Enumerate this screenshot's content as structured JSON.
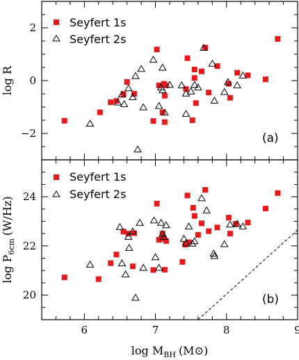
{
  "chart_data": [
    {
      "type": "scatter",
      "panel_label": "(a)",
      "ylabel_main": "log R",
      "xlim": [
        5.4,
        9.0
      ],
      "ylim": [
        -3.0,
        3.0
      ],
      "xticks": [
        6,
        7,
        8,
        9
      ],
      "yticks": [
        -2,
        0,
        2
      ],
      "ytick_labels": [
        "−2",
        "0",
        "2"
      ],
      "series": [
        {
          "name": "Seyfert 1s",
          "marker": "square",
          "color": "#e41a1c",
          "points": [
            [
              5.72,
              -1.52
            ],
            [
              6.22,
              -1.2
            ],
            [
              6.37,
              -0.82
            ],
            [
              6.45,
              -0.77
            ],
            [
              6.55,
              -0.51
            ],
            [
              6.6,
              -0.05
            ],
            [
              6.7,
              -0.5
            ],
            [
              6.97,
              -1.53
            ],
            [
              7.02,
              1.18
            ],
            [
              7.05,
              -0.18
            ],
            [
              7.1,
              -1.2
            ],
            [
              7.12,
              -0.12
            ],
            [
              7.13,
              -0.57
            ],
            [
              7.13,
              -1.57
            ],
            [
              7.15,
              -0.18
            ],
            [
              7.43,
              -0.32
            ],
            [
              7.45,
              0.85
            ],
            [
              7.52,
              -1.5
            ],
            [
              7.55,
              0.1
            ],
            [
              7.55,
              0.42
            ],
            [
              7.57,
              -0.85
            ],
            [
              7.65,
              0.35
            ],
            [
              7.7,
              1.25
            ],
            [
              7.75,
              -0.45
            ],
            [
              7.87,
              0.55
            ],
            [
              8.03,
              -0.12
            ],
            [
              8.05,
              -0.65
            ],
            [
              8.15,
              0.3
            ],
            [
              8.3,
              0.2
            ],
            [
              8.55,
              0.05
            ],
            [
              8.72,
              1.58
            ]
          ]
        },
        {
          "name": "Seyfert 2s",
          "marker": "triangle",
          "color": "#000000",
          "points": [
            [
              6.08,
              -1.62
            ],
            [
              6.47,
              -0.82
            ],
            [
              6.53,
              -0.52
            ],
            [
              6.56,
              -0.88
            ],
            [
              6.62,
              -0.28
            ],
            [
              6.68,
              -0.62
            ],
            [
              6.72,
              0.18
            ],
            [
              6.75,
              -2.6
            ],
            [
              6.8,
              0.45
            ],
            [
              6.83,
              -1.0
            ],
            [
              6.97,
              0.8
            ],
            [
              7.05,
              -0.95
            ],
            [
              7.08,
              -0.25
            ],
            [
              7.1,
              0.5
            ],
            [
              7.1,
              -0.35
            ],
            [
              7.13,
              -1.2
            ],
            [
              7.2,
              -0.15
            ],
            [
              7.37,
              -0.17
            ],
            [
              7.43,
              -0.48
            ],
            [
              7.43,
              -1.25
            ],
            [
              7.5,
              -0.4
            ],
            [
              7.55,
              -0.15
            ],
            [
              7.6,
              -0.25
            ],
            [
              7.68,
              1.25
            ],
            [
              7.8,
              0.65
            ],
            [
              7.83,
              -0.75
            ],
            [
              7.97,
              -0.42
            ],
            [
              8.02,
              -0.05
            ],
            [
              8.15,
              -0.17
            ],
            [
              8.23,
              0.2
            ]
          ]
        }
      ]
    },
    {
      "type": "scatter",
      "panel_label": "(b)",
      "ylabel_main": "log P",
      "ylabel_sub": "6cm",
      "ylabel_unit": "(W/Hz)",
      "xlabel_main": "log M",
      "xlabel_sub": "BH",
      "xlabel_unit": "(M⊙)",
      "xlim": [
        5.4,
        9.0
      ],
      "ylim": [
        19.0,
        25.5
      ],
      "xticks": [
        6,
        7,
        8,
        9
      ],
      "yticks": [
        20,
        22,
        24
      ],
      "reference_line": [
        [
          7.6,
          19.0
        ],
        [
          9.0,
          22.65
        ]
      ],
      "series": [
        {
          "name": "Seyfert 1s",
          "marker": "square",
          "color": "#e41a1c",
          "points": [
            [
              5.72,
              20.72
            ],
            [
              6.2,
              20.65
            ],
            [
              6.37,
              21.3
            ],
            [
              6.45,
              21.65
            ],
            [
              6.55,
              22.58
            ],
            [
              6.62,
              22.5
            ],
            [
              6.68,
              21.17
            ],
            [
              6.7,
              22.52
            ],
            [
              6.97,
              21.02
            ],
            [
              7.02,
              23.72
            ],
            [
              7.05,
              22.25
            ],
            [
              7.1,
              22.5
            ],
            [
              7.12,
              22.3
            ],
            [
              7.13,
              21.03
            ],
            [
              7.15,
              22.2
            ],
            [
              7.38,
              21.35
            ],
            [
              7.42,
              22.05
            ],
            [
              7.45,
              24.05
            ],
            [
              7.47,
              22.15
            ],
            [
              7.53,
              23.55
            ],
            [
              7.55,
              23.22
            ],
            [
              7.6,
              22.45
            ],
            [
              7.65,
              22.92
            ],
            [
              7.7,
              24.28
            ],
            [
              7.75,
              22.6
            ],
            [
              7.87,
              22.75
            ],
            [
              8.03,
              23.15
            ],
            [
              8.05,
              22.5
            ],
            [
              8.13,
              22.9
            ],
            [
              8.3,
              22.95
            ],
            [
              8.55,
              23.52
            ],
            [
              8.72,
              24.15
            ]
          ]
        },
        {
          "name": "Seyfert 2s",
          "marker": "triangle",
          "color": "#000000",
          "points": [
            [
              6.08,
              21.25
            ],
            [
              6.5,
              22.78
            ],
            [
              6.53,
              21.3
            ],
            [
              6.58,
              20.85
            ],
            [
              6.62,
              22.38
            ],
            [
              6.63,
              21.93
            ],
            [
              6.68,
              22.6
            ],
            [
              6.72,
              19.9
            ],
            [
              6.78,
              22.95
            ],
            [
              6.83,
              21.12
            ],
            [
              6.98,
              23.05
            ],
            [
              7.0,
              21.55
            ],
            [
              7.05,
              21.12
            ],
            [
              7.08,
              22.95
            ],
            [
              7.1,
              22.5
            ],
            [
              7.12,
              22.38
            ],
            [
              7.15,
              22.85
            ],
            [
              7.4,
              22.3
            ],
            [
              7.43,
              22.12
            ],
            [
              7.47,
              22.8
            ],
            [
              7.52,
              22.1
            ],
            [
              7.55,
              22.2
            ],
            [
              7.65,
              23.95
            ],
            [
              7.72,
              23.45
            ],
            [
              7.82,
              21.7
            ],
            [
              7.83,
              21.6
            ],
            [
              7.97,
              22.08
            ],
            [
              8.05,
              22.88
            ],
            [
              8.15,
              22.9
            ],
            [
              8.23,
              22.8
            ]
          ]
        }
      ]
    }
  ]
}
